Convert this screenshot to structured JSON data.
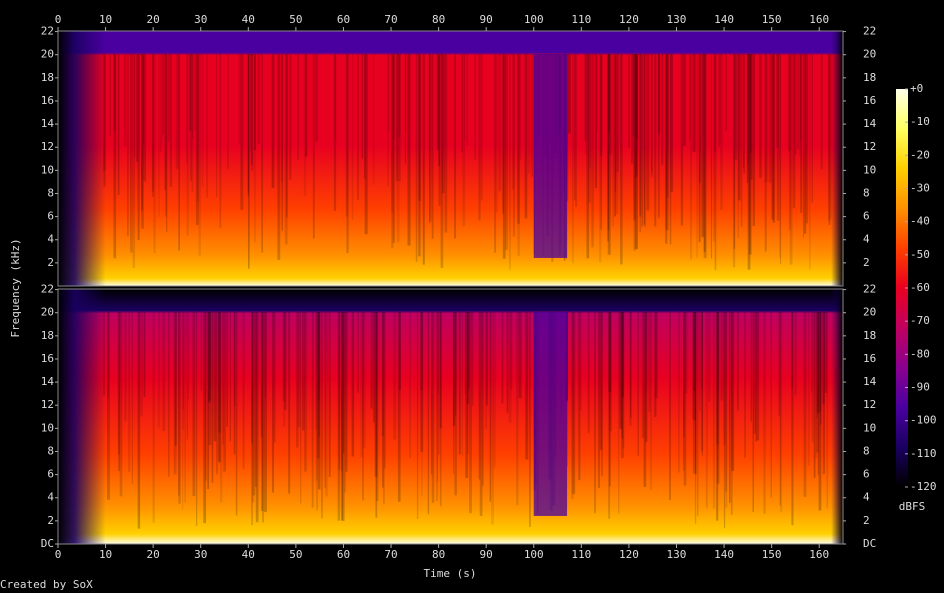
{
  "chart_data": {
    "type": "spectrogram",
    "xlabel": "Time (s)",
    "ylabel": "Frequency (kHz)",
    "xlim": [
      0,
      165
    ],
    "xticks": [
      0,
      10,
      20,
      30,
      40,
      50,
      60,
      70,
      80,
      90,
      100,
      110,
      120,
      130,
      140,
      150,
      160
    ],
    "ylim": [
      0,
      22.05
    ],
    "panels": [
      {
        "yticks": [
          2,
          4,
          6,
          8,
          10,
          12,
          14,
          16,
          18,
          20,
          22
        ]
      },
      {
        "yticks": [
          {
            "value": 0,
            "label": "DC"
          },
          2,
          4,
          6,
          8,
          10,
          12,
          14,
          16,
          18,
          20,
          22
        ]
      }
    ],
    "colorbar": {
      "label": "dBFS",
      "lim": [
        -120,
        0
      ],
      "ticks": [
        {
          "value": 0,
          "label": "+0"
        },
        -10,
        -20,
        -30,
        -40,
        -50,
        -60,
        -70,
        -80,
        -90,
        -100,
        -110,
        -120
      ],
      "colors": [
        "#ffffe8",
        "#ffff60",
        "#ffd000",
        "#ff9000",
        "#ff4000",
        "#e80020",
        "#c00060",
        "#8a0090",
        "#4a00a0",
        "#1a0060",
        "#000000"
      ]
    },
    "footer": "Created by SoX"
  }
}
